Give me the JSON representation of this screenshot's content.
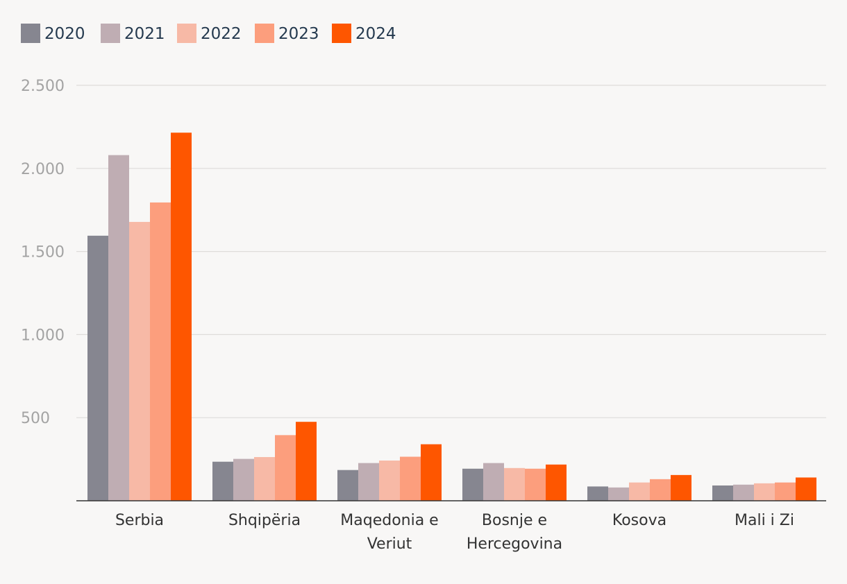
{
  "chart_data": {
    "type": "bar",
    "title": "",
    "xlabel": "",
    "ylabel": "",
    "categories": [
      [
        "Serbia"
      ],
      [
        "Shqipëria"
      ],
      [
        "Maqedonia e",
        "Veriut"
      ],
      [
        "Bosnje e",
        "Hercegovina"
      ],
      [
        "Kosova"
      ],
      [
        "Mali i Zi"
      ]
    ],
    "series": [
      {
        "name": "2020",
        "color": "#868690",
        "values": [
          1595,
          235,
          185,
          193,
          86,
          92
        ]
      },
      {
        "name": "2021",
        "color": "#bfadb3",
        "values": [
          2080,
          252,
          227,
          227,
          80,
          97
        ]
      },
      {
        "name": "2022",
        "color": "#f7b9a6",
        "values": [
          1678,
          263,
          242,
          197,
          110,
          105
        ]
      },
      {
        "name": "2023",
        "color": "#fc9e7d",
        "values": [
          1795,
          395,
          265,
          193,
          130,
          110
        ]
      },
      {
        "name": "2024",
        "color": "#fe5600",
        "values": [
          2215,
          475,
          340,
          218,
          155,
          140
        ]
      }
    ],
    "ylim": [
      0,
      2500
    ],
    "yticks": [
      500,
      1000,
      1500,
      2000,
      2500
    ],
    "ytick_labels": [
      "500",
      "1.000",
      "1.500",
      "2.000",
      "2.500"
    ],
    "grid": true,
    "legend_position": "top-left"
  }
}
